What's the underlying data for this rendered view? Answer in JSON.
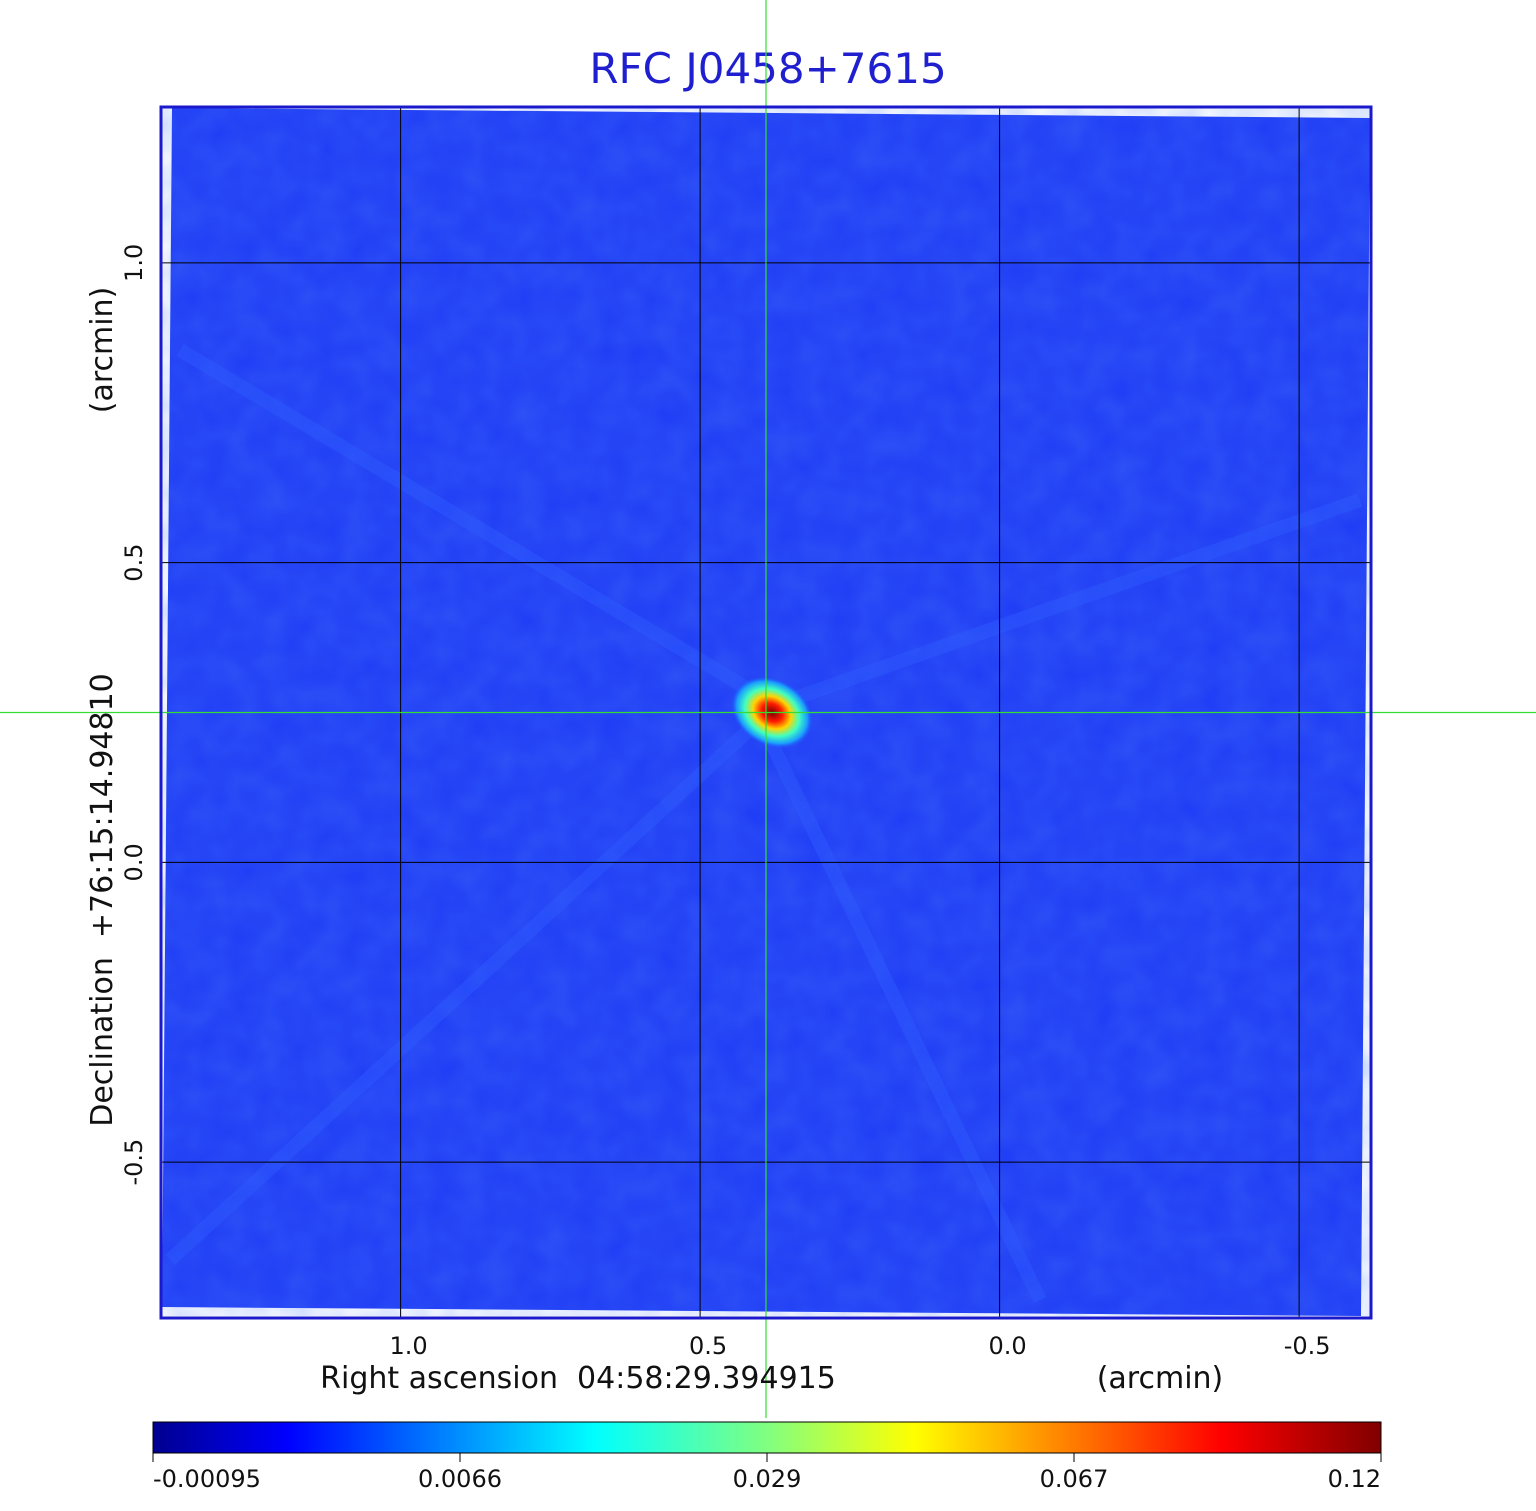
{
  "chart_data": {
    "type": "heatmap",
    "title": "RFC J0458+7615",
    "xlabel": "Right ascension  04:58:29.394915",
    "xunit": "(arcmin)",
    "ylabel": "Declination  +76:15:14.94810",
    "yunit": "(arcmin)",
    "x_ticks": [
      "1.0",
      "0.5",
      "0.0",
      "-0.5"
    ],
    "y_ticks": [
      "1.0",
      "0.5",
      "0.0",
      "-0.5"
    ],
    "xlim": [
      1.4,
      -0.62
    ],
    "ylim": [
      -0.76,
      1.26
    ],
    "x_reversed": true,
    "grid": true,
    "crosshair": {
      "x": 0.39,
      "y": 0.25,
      "color": "#33dd33"
    },
    "source": {
      "x": 0.38,
      "y": 0.25,
      "peak": 0.12
    },
    "colorbar": {
      "colormap": "jet",
      "tick_labels": [
        "-0.00095",
        "0.0066",
        "0.029",
        "0.067",
        "0.12"
      ],
      "min": -0.00095,
      "max": 0.12
    },
    "colors": {
      "title": "#1f1fcf",
      "frame": "#1a1acc",
      "grid": "#000000",
      "background_map": "#1f3cf5"
    }
  }
}
